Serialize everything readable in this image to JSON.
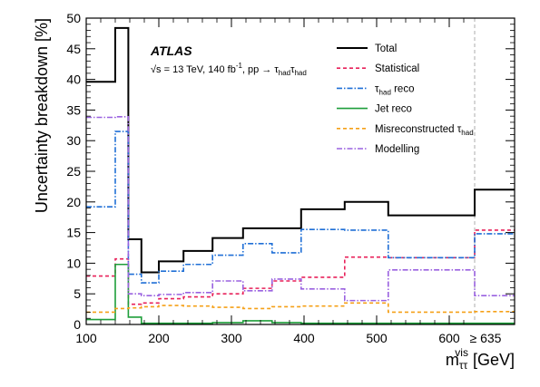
{
  "chart_data": {
    "type": "line",
    "step": true,
    "ylabel": "Uncertainty breakdown [%]",
    "xlabel": "m",
    "xlabel_sub": "ττ",
    "xlabel_sup": "vis",
    "xlabel_unit": "[GeV]",
    "xlim": [
      100,
      690
    ],
    "ylim": [
      0,
      50
    ],
    "xticks": [
      100,
      200,
      300,
      400,
      500,
      600
    ],
    "xtick_extra_label": "≥ 635",
    "xtick_extra_pos": 650,
    "yticks": [
      0,
      5,
      10,
      15,
      20,
      25,
      30,
      35,
      40,
      45,
      50
    ],
    "overflow_line_x": 635,
    "bin_edges": [
      100,
      140,
      158,
      176,
      200,
      234,
      274,
      316,
      356,
      396,
      456,
      516,
      635,
      690
    ],
    "annotation": {
      "experiment": "ATLAS",
      "energy": "√s = 13 TeV, 140 fb",
      "energy_sup": "-1",
      "process": ", pp → τ",
      "proc_sub1": "had",
      "tau2": "τ",
      "proc_sub2": "had"
    },
    "legend_position": "top-right",
    "series": [
      {
        "name": "Total",
        "color": "#000000",
        "dash": "",
        "width": 2,
        "values": [
          39.6,
          48.4,
          13.9,
          8.5,
          10.3,
          12.0,
          14.1,
          15.7,
          15.7,
          18.8,
          20.0,
          17.8,
          22.0
        ]
      },
      {
        "name": "Statistical",
        "color": "#e8215a",
        "dash": "4,3",
        "width": 1.6,
        "values": [
          7.9,
          10.7,
          3.3,
          3.5,
          4.2,
          4.5,
          5.0,
          5.9,
          7.1,
          7.7,
          11.0,
          10.9,
          15.4
        ]
      },
      {
        "name": "τ",
        "sub": "had",
        "suffix": " reco",
        "color": "#1f6fd6",
        "dash": "6,2,1.5,2",
        "width": 1.6,
        "values": [
          19.2,
          31.5,
          8.2,
          6.8,
          8.7,
          9.8,
          11.3,
          13.2,
          11.7,
          15.5,
          15.4,
          10.9,
          14.8
        ]
      },
      {
        "name": "Jet reco",
        "color": "#1e9e3a",
        "dash": "",
        "width": 1.6,
        "values": [
          0.8,
          9.8,
          1.2,
          0.2,
          0.2,
          0.2,
          0.3,
          0.6,
          0.3,
          0.2,
          0.2,
          0.2,
          0.2
        ]
      },
      {
        "name": "Misreconstructed τ",
        "sub": "had",
        "suffix": "",
        "color": "#f5a017",
        "dash": "4,3",
        "width": 1.6,
        "values": [
          2.0,
          2.6,
          2.7,
          2.9,
          3.1,
          3.0,
          2.8,
          2.6,
          2.9,
          3.0,
          3.5,
          2.0,
          2.1
        ]
      },
      {
        "name": "Modelling",
        "color": "#9a62e0",
        "dash": "6,2,1.5,2",
        "width": 1.6,
        "values": [
          33.8,
          33.9,
          5.0,
          4.7,
          4.9,
          5.2,
          7.1,
          5.5,
          7.4,
          5.8,
          3.9,
          8.9,
          4.7
        ]
      }
    ]
  }
}
